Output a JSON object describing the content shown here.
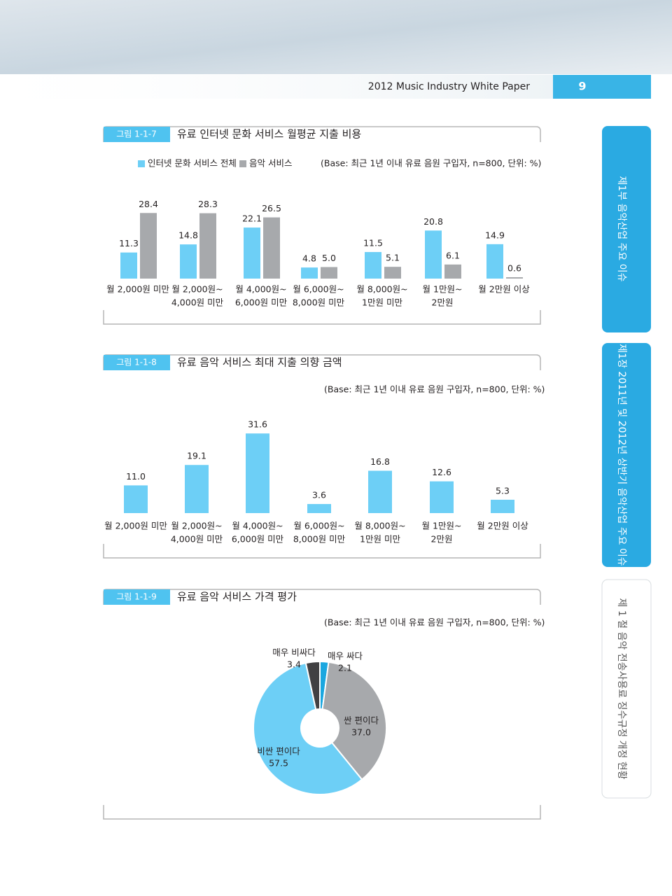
{
  "header": {
    "title": "2012 Music Industry White Paper",
    "page": "9"
  },
  "side_tabs": [
    "제1부  음악산업 주요 이슈",
    "제1장  2011년 및 2012년 상반기 음악산업 주요 이슈",
    "제 1 절  음악 전송사용료 징수규정 개정 현황"
  ],
  "chart_data": [
    {
      "type": "bar",
      "figure_label": "그림 1-1-7",
      "title": "유료 인터넷 문화 서비스 월평균 지출 비용",
      "note": "(Base: 최근 1년 이내 유료 음원 구입자, n=800, 단위: %)",
      "categories": [
        [
          "월 2,000원 미만"
        ],
        [
          "월 2,000원~",
          "4,000원 미만"
        ],
        [
          "월 4,000원~",
          "6,000원 미만"
        ],
        [
          "월 6,000원~",
          "8,000원 미만"
        ],
        [
          "월 8,000원~",
          "1만원 미만"
        ],
        [
          "월 1만원~",
          "2만원"
        ],
        [
          "월 2만원 이상"
        ]
      ],
      "series": [
        {
          "name": "인터넷 문화 서비스 전체",
          "color": "#6dcff6",
          "values": [
            11.3,
            14.8,
            22.1,
            4.8,
            11.5,
            20.8,
            14.9
          ],
          "value_labels": [
            "11.3",
            "14.8",
            "22.1",
            "4.8",
            "11.5",
            "20.8",
            "14.9"
          ]
        },
        {
          "name": "음악 서비스",
          "color": "#a7a9ac",
          "values": [
            28.4,
            28.3,
            26.5,
            5.0,
            5.1,
            6.1,
            0.6
          ],
          "value_labels": [
            "28.4",
            "28.3",
            "26.5",
            "5.0",
            "5.1",
            "6.1",
            "0.6"
          ]
        }
      ]
    },
    {
      "type": "bar",
      "figure_label": "그림 1-1-8",
      "title": "유료 음악 서비스 최대 지출 의향 금액",
      "note": "(Base: 최근 1년 이내 유료 음원 구입자, n=800, 단위: %)",
      "categories": [
        [
          "월 2,000원 미만"
        ],
        [
          "월 2,000원~",
          "4,000원 미만"
        ],
        [
          "월 4,000원~",
          "6,000원 미만"
        ],
        [
          "월 6,000원~",
          "8,000원 미만"
        ],
        [
          "월 8,000원~",
          "1만원 미만"
        ],
        [
          "월 1만원~",
          "2만원"
        ],
        [
          "월 2만원 이상"
        ]
      ],
      "color": "#6dcff6",
      "values": [
        11.0,
        19.1,
        31.6,
        3.6,
        16.8,
        12.6,
        5.3
      ],
      "value_labels": [
        "11.0",
        "19.1",
        "31.6",
        "3.6",
        "16.8",
        "12.6",
        "5.3"
      ]
    },
    {
      "type": "pie",
      "donut": true,
      "figure_label": "그림 1-1-9",
      "title": "유료 음악 서비스 가격 평가",
      "note": "(Base: 최근 1년 이내 유료 음원 구입자, n=800, 단위: %)",
      "categories": [
        "매우 싸다",
        "싼 편이다",
        "비싼 편이다",
        "매우 비싸다"
      ],
      "values": [
        2.1,
        37.0,
        57.5,
        3.4
      ],
      "value_labels": [
        "2.1",
        "37.0",
        "57.5",
        "3.4"
      ],
      "colors": [
        "#1aa7e0",
        "#a7a9ac",
        "#6dcff6",
        "#414042"
      ]
    }
  ]
}
